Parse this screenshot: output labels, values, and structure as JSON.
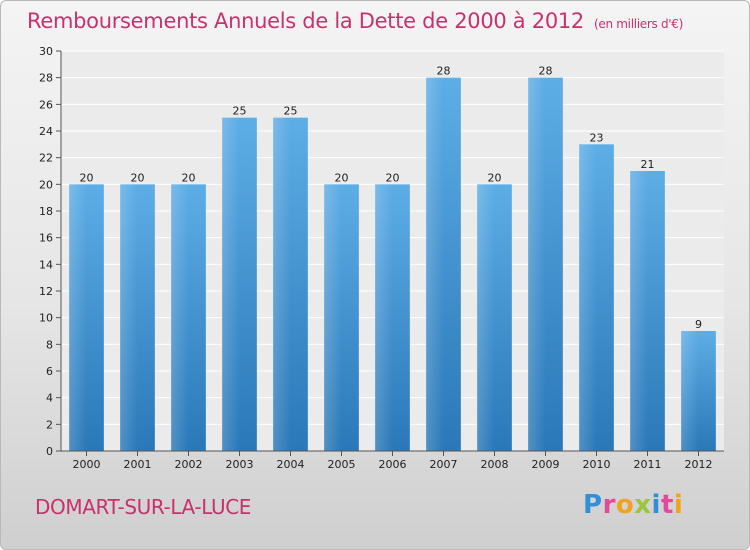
{
  "title": "Remboursements Annuels de la Dette de 2000 à 2012",
  "unit": "(en milliers d'€)",
  "commune": "DOMART-SUR-LA-LUCE",
  "logo": {
    "letters": [
      "P",
      "r",
      "o",
      "x",
      "i",
      "t",
      "i"
    ],
    "colors": [
      "#2f8fd8",
      "#e14a9a",
      "#f3a21b",
      "#9ac53d",
      "#2f8fd8",
      "#e14a9a",
      "#f3a21b"
    ]
  },
  "colors": {
    "bar_top": "#5dade6",
    "bar_bottom": "#2a78b8",
    "title": "#c8316e"
  },
  "chart_data": {
    "type": "bar",
    "title": "Remboursements Annuels de la Dette de 2000 à 2012",
    "xlabel": "",
    "ylabel": "",
    "categories": [
      "2000",
      "2001",
      "2002",
      "2003",
      "2004",
      "2005",
      "2006",
      "2007",
      "2008",
      "2009",
      "2010",
      "2011",
      "2012"
    ],
    "values": [
      20,
      20,
      20,
      25,
      25,
      20,
      20,
      28,
      20,
      28,
      23,
      21,
      9
    ],
    "ylim": [
      0,
      30
    ],
    "yticks": [
      0,
      2,
      4,
      6,
      8,
      10,
      12,
      14,
      16,
      18,
      20,
      22,
      24,
      26,
      28,
      30
    ],
    "grid": true
  }
}
